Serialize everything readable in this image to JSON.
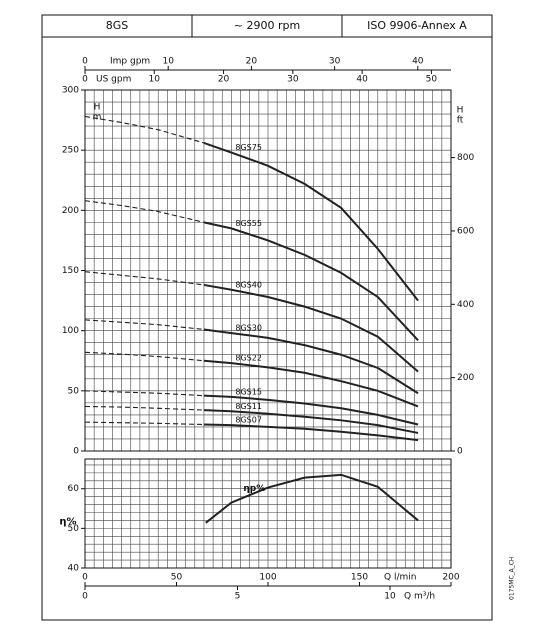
{
  "header": {
    "cells": [
      "8GS",
      "~ 2900 rpm",
      "ISO 9906-Annex A"
    ]
  },
  "drawing_code": "0175MC_A_CH",
  "chart_data": [
    {
      "type": "line",
      "x": [
        0,
        20,
        40,
        65,
        80,
        100,
        120,
        140,
        160,
        182
      ],
      "xlim": [
        0,
        200
      ],
      "x_grid_step": 5,
      "ylim": [
        0,
        300
      ],
      "yticks": [
        0,
        50,
        100,
        150,
        200,
        250,
        300
      ],
      "y_grid_step": 10,
      "y_label": [
        "H",
        "m"
      ],
      "y2lim": [
        0,
        984.25
      ],
      "y2ticks": [
        0,
        200,
        400,
        600,
        800
      ],
      "y2_label": [
        "H",
        "ft"
      ],
      "top_axes": [
        {
          "label": "Imp gpm",
          "xlim": [
            0,
            43.99
          ],
          "xticks": [
            0,
            10,
            20,
            30,
            40
          ]
        },
        {
          "label": "US gpm",
          "xlim": [
            0,
            52.83
          ],
          "xticks": [
            0,
            10,
            20,
            30,
            40,
            50
          ]
        }
      ],
      "dash_until": 65,
      "color": "#222222",
      "grid": true,
      "series": [
        {
          "name": "8GS75",
          "values": [
            278,
            273,
            267,
            256,
            248,
            237,
            222,
            202,
            168,
            125
          ]
        },
        {
          "name": "8GS55",
          "values": [
            208,
            204,
            199,
            190,
            185,
            175,
            163,
            148,
            128,
            92
          ]
        },
        {
          "name": "8GS40",
          "values": [
            149,
            146,
            143,
            138,
            134,
            128,
            120,
            110,
            95,
            66
          ]
        },
        {
          "name": "8GS30",
          "values": [
            109,
            107,
            105,
            101,
            98,
            94,
            88,
            80,
            69,
            48
          ]
        },
        {
          "name": "8GS22",
          "values": [
            82,
            80.5,
            78.5,
            75,
            73,
            69.5,
            65,
            58,
            50,
            37
          ]
        },
        {
          "name": "8GS15",
          "values": [
            50,
            49,
            48,
            46,
            45,
            42.5,
            39.5,
            35.5,
            30,
            22
          ]
        },
        {
          "name": "8GS11",
          "values": [
            37,
            36.5,
            35.5,
            34,
            33,
            31,
            28.5,
            25.5,
            21.5,
            15
          ]
        },
        {
          "name": "8GS07",
          "values": [
            24,
            23.5,
            23,
            22,
            21.5,
            20,
            18.5,
            16,
            13,
            9
          ]
        }
      ]
    },
    {
      "type": "line",
      "x": [
        66,
        80,
        100,
        120,
        140,
        160,
        182
      ],
      "xlim": [
        0,
        200
      ],
      "xticks": [
        0,
        50,
        100,
        150,
        200
      ],
      "x_label": "Q l/min",
      "x_grid_step": 5,
      "x2": {
        "label": "Q m³/h",
        "xlim": [
          0,
          12
        ],
        "xticks": [
          0,
          5,
          10
        ]
      },
      "ylim": [
        40,
        67.5
      ],
      "yticks": [
        40,
        50,
        60
      ],
      "y_grid_step": 2,
      "y_label": "η%",
      "color": "#222222",
      "grid": true,
      "series": [
        {
          "name": "ηp%",
          "values": [
            51.4,
            56.5,
            60.3,
            62.8,
            63.5,
            60.5,
            52
          ]
        }
      ]
    }
  ]
}
